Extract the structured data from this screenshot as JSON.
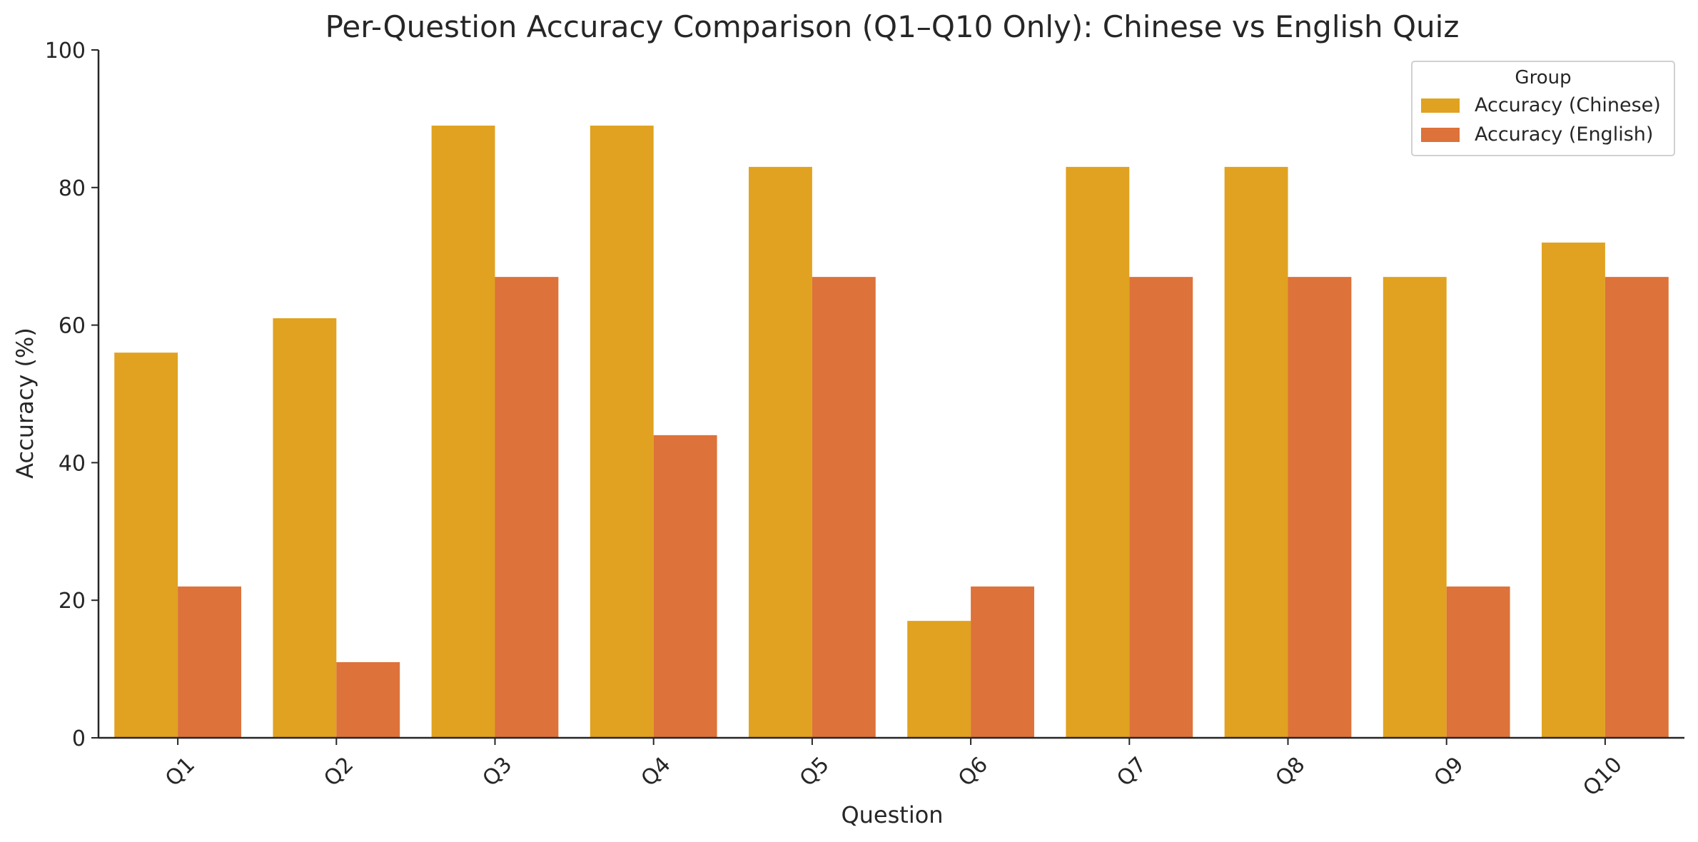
{
  "chart_data": {
    "type": "bar",
    "title": "Per-Question Accuracy Comparison (Q1–Q10 Only): Chinese vs English Quiz",
    "xlabel": "Question",
    "ylabel": "Accuracy (%)",
    "ylim": [
      0,
      100
    ],
    "yticks": [
      0,
      20,
      40,
      60,
      80,
      100
    ],
    "grid": false,
    "categories": [
      "Q1",
      "Q2",
      "Q3",
      "Q4",
      "Q5",
      "Q6",
      "Q7",
      "Q8",
      "Q9",
      "Q10"
    ],
    "legend": {
      "title": "Group",
      "placement": "top-right"
    },
    "series": [
      {
        "name": "Accuracy (Chinese)",
        "color": "#e0a220",
        "values": [
          56,
          61,
          89,
          89,
          83,
          17,
          83,
          83,
          67,
          72
        ]
      },
      {
        "name": "Accuracy (English)",
        "color": "#dd723a",
        "values": [
          22,
          11,
          67,
          44,
          67,
          22,
          67,
          67,
          22,
          67
        ]
      }
    ]
  }
}
